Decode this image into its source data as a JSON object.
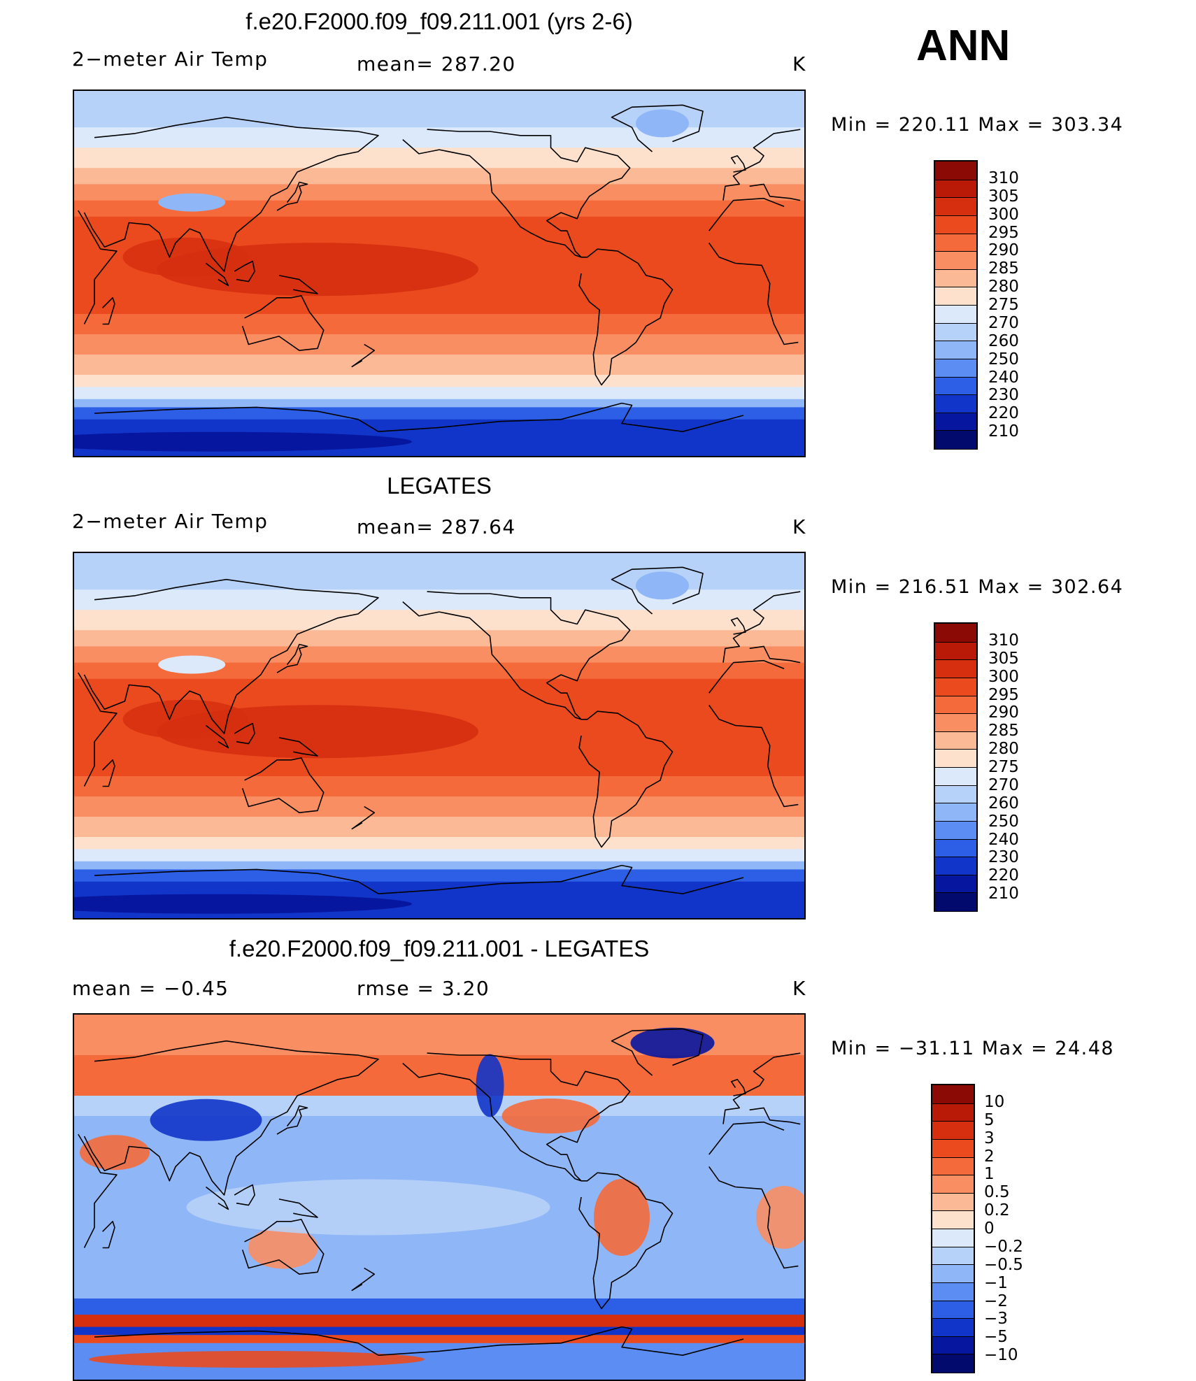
{
  "season": "ANN",
  "panels": [
    {
      "title": "f.e20.F2000.f09_f09.211.001 (yrs 2-6)",
      "left_label": "2−meter Air Temp",
      "center_label": "mean=  287.20",
      "units": "K",
      "stats": "Min  =  220.11  Max  =  303.34",
      "legend_labels": [
        "310",
        "305",
        "300",
        "295",
        "290",
        "285",
        "280",
        "275",
        "270",
        "260",
        "250",
        "240",
        "230",
        "220",
        "210"
      ]
    },
    {
      "title": "LEGATES",
      "left_label": "2−meter Air Temp",
      "center_label": "mean=  287.64",
      "units": "K",
      "stats": "Min  =  216.51  Max  =  302.64",
      "legend_labels": [
        "310",
        "305",
        "300",
        "295",
        "290",
        "285",
        "280",
        "275",
        "270",
        "260",
        "250",
        "240",
        "230",
        "220",
        "210"
      ]
    },
    {
      "title": "f.e20.F2000.f09_f09.211.001 - LEGATES",
      "left_label": "mean  =    −0.45",
      "center_label": "rmse  =     3.20",
      "units": "K",
      "stats": "Min  =  −31.11  Max  =    24.48",
      "legend_labels": [
        "10",
        "5",
        "3",
        "2",
        "1",
        "0.5",
        "0.2",
        "0",
        "−0.2",
        "−0.5",
        "−1",
        "−2",
        "−3",
        "−5",
        "−10"
      ]
    }
  ],
  "colors": {
    "temp_scale": [
      "#8b0a05",
      "#b81a07",
      "#d62f0f",
      "#ea4a1e",
      "#f46a3b",
      "#fa8e63",
      "#fcb995",
      "#fde1cc",
      "#dbe9fb",
      "#b7d2f8",
      "#8fb6f6",
      "#5b8df2",
      "#2c5fe6",
      "#1235c9",
      "#07169e",
      "#020a6e"
    ],
    "diff_scale": [
      "#8b0a05",
      "#b81a07",
      "#d62f0f",
      "#ea4a1e",
      "#f46a3b",
      "#fa8e63",
      "#fcb995",
      "#fde1cc",
      "#dbe9fb",
      "#b7d2f8",
      "#8fb6f6",
      "#5b8df2",
      "#2c5fe6",
      "#1235c9",
      "#07169e",
      "#020a6e"
    ]
  }
}
